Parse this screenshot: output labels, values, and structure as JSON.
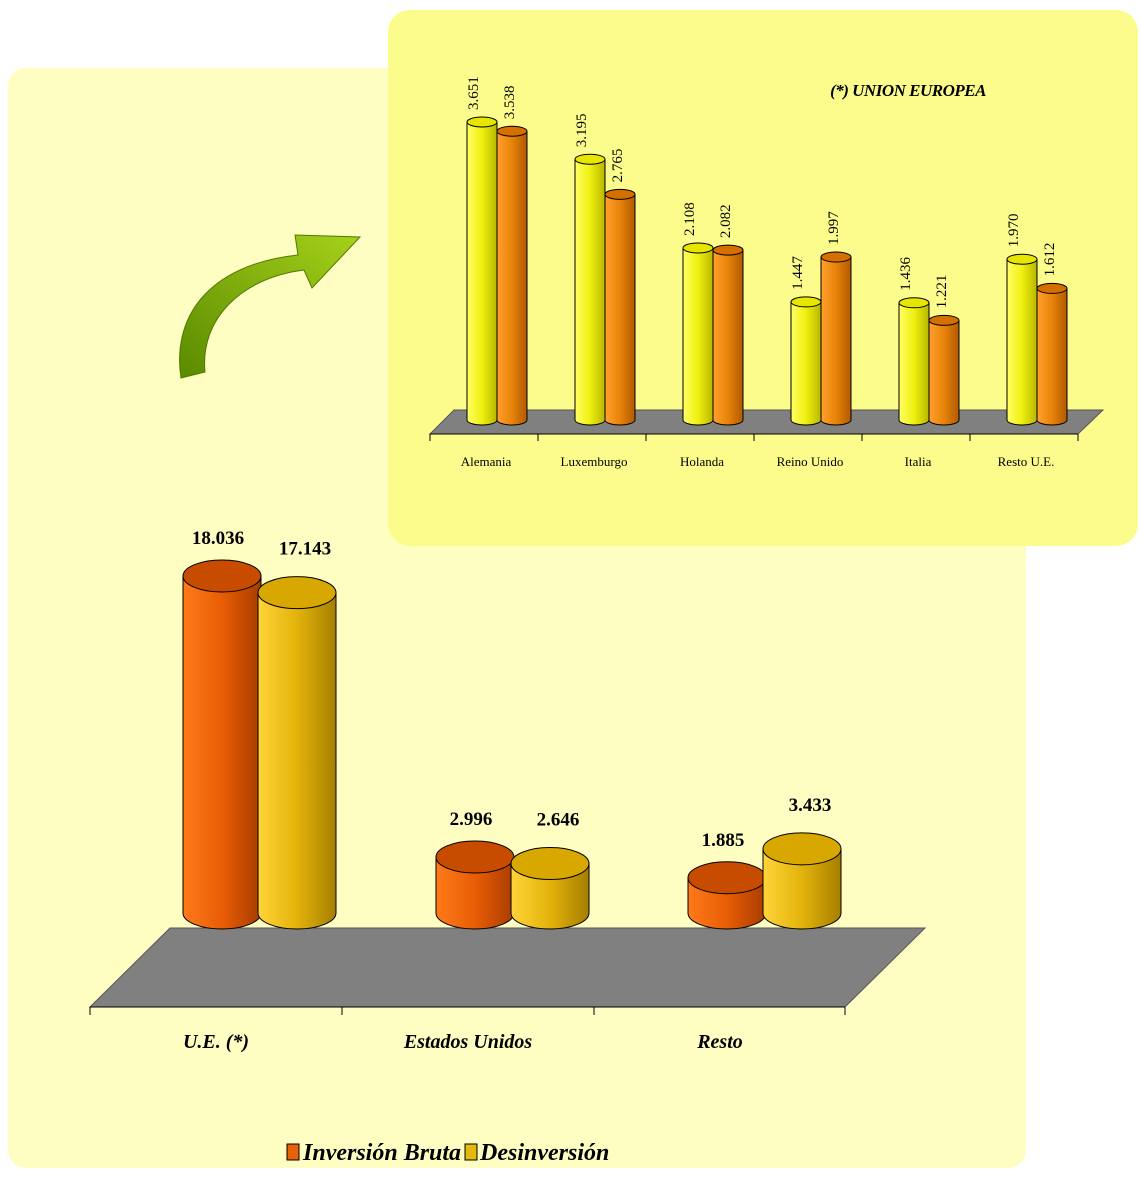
{
  "chart_data": [
    {
      "type": "bar",
      "categories": [
        "U.E. (*)",
        "Estados Unidos",
        "Resto"
      ],
      "series": [
        {
          "name": "Inversión Bruta",
          "values": [
            18.036,
            2.996,
            1.885
          ],
          "labels": [
            "18.036",
            "2.996",
            "1.885"
          ],
          "color": "#e8610a"
        },
        {
          "name": "Desinversión",
          "values": [
            17.143,
            2.646,
            3.433
          ],
          "labels": [
            "17.143",
            "2.646",
            "3.433"
          ],
          "color": "#e3b90c"
        }
      ],
      "legend": "bottom"
    },
    {
      "type": "bar",
      "title": "(*) UNION EUROPEA",
      "categories": [
        "Alemania",
        "Luxemburgo",
        "Holanda",
        "Reino Unido",
        "Italia",
        "Resto U.E."
      ],
      "series": [
        {
          "values": [
            3.651,
            3.195,
            2.108,
            1.447,
            1.436,
            1.97
          ],
          "labels": [
            "3.651",
            "3.195",
            "2.108",
            "1.447",
            "1.436",
            "1.970"
          ],
          "color": "#f2f21a"
        },
        {
          "values": [
            3.538,
            2.765,
            2.082,
            1.997,
            1.221,
            1.612
          ],
          "labels": [
            "3.538",
            "2.765",
            "2.082",
            "1.997",
            "1.221",
            "1.612"
          ],
          "color": "#e8850a"
        }
      ]
    }
  ]
}
